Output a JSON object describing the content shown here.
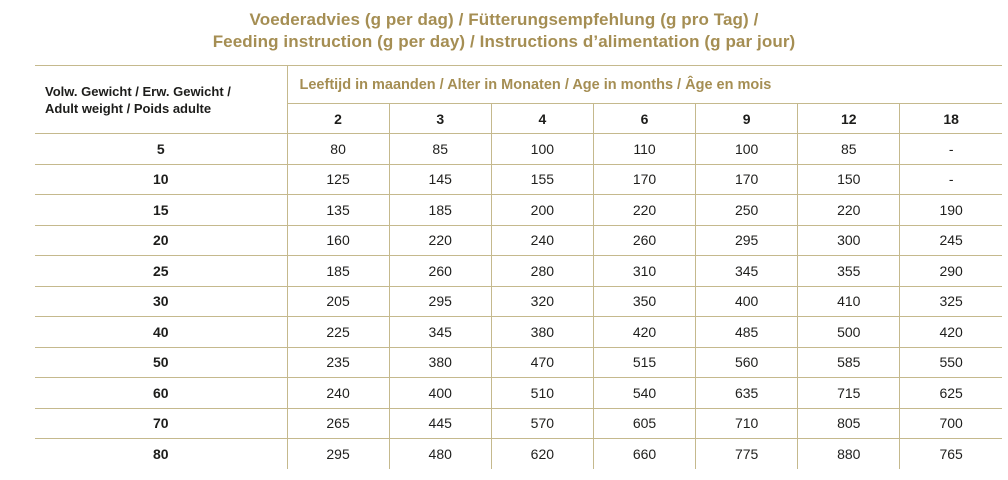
{
  "title": {
    "line1": "Voederadvies (g per dag) / Fütterungsempfehlung (g pro Tag) /",
    "line2": "Feeding instruction (g per day) / Instructions d’alimentation (g par jour)"
  },
  "table": {
    "weight_header": {
      "line1": "Volw. Gewicht / Erw. Gewicht /",
      "line2": "Adult weight / Poids adulte"
    },
    "age_header": "Leeftijd in maanden / Alter in Monaten / Age in months / Âge en mois",
    "age_columns": [
      "2",
      "3",
      "4",
      "6",
      "9",
      "12",
      "18"
    ],
    "rows": [
      {
        "weight": "5",
        "values": [
          "80",
          "85",
          "100",
          "110",
          "100",
          "85",
          "-"
        ]
      },
      {
        "weight": "10",
        "values": [
          "125",
          "145",
          "155",
          "170",
          "170",
          "150",
          "-"
        ]
      },
      {
        "weight": "15",
        "values": [
          "135",
          "185",
          "200",
          "220",
          "250",
          "220",
          "190"
        ]
      },
      {
        "weight": "20",
        "values": [
          "160",
          "220",
          "240",
          "260",
          "295",
          "300",
          "245"
        ]
      },
      {
        "weight": "25",
        "values": [
          "185",
          "260",
          "280",
          "310",
          "345",
          "355",
          "290"
        ]
      },
      {
        "weight": "30",
        "values": [
          "205",
          "295",
          "320",
          "350",
          "400",
          "410",
          "325"
        ]
      },
      {
        "weight": "40",
        "values": [
          "225",
          "345",
          "380",
          "420",
          "485",
          "500",
          "420"
        ]
      },
      {
        "weight": "50",
        "values": [
          "235",
          "380",
          "470",
          "515",
          "560",
          "585",
          "550"
        ]
      },
      {
        "weight": "60",
        "values": [
          "240",
          "400",
          "510",
          "540",
          "635",
          "715",
          "625"
        ]
      },
      {
        "weight": "70",
        "values": [
          "265",
          "445",
          "570",
          "605",
          "710",
          "805",
          "700"
        ]
      },
      {
        "weight": "80",
        "values": [
          "295",
          "480",
          "620",
          "660",
          "775",
          "880",
          "765"
        ]
      }
    ]
  },
  "colors": {
    "accent_gold": "#a58e53",
    "grid_border": "#c5b98d",
    "text": "#1d1d1b",
    "background": "#ffffff"
  }
}
